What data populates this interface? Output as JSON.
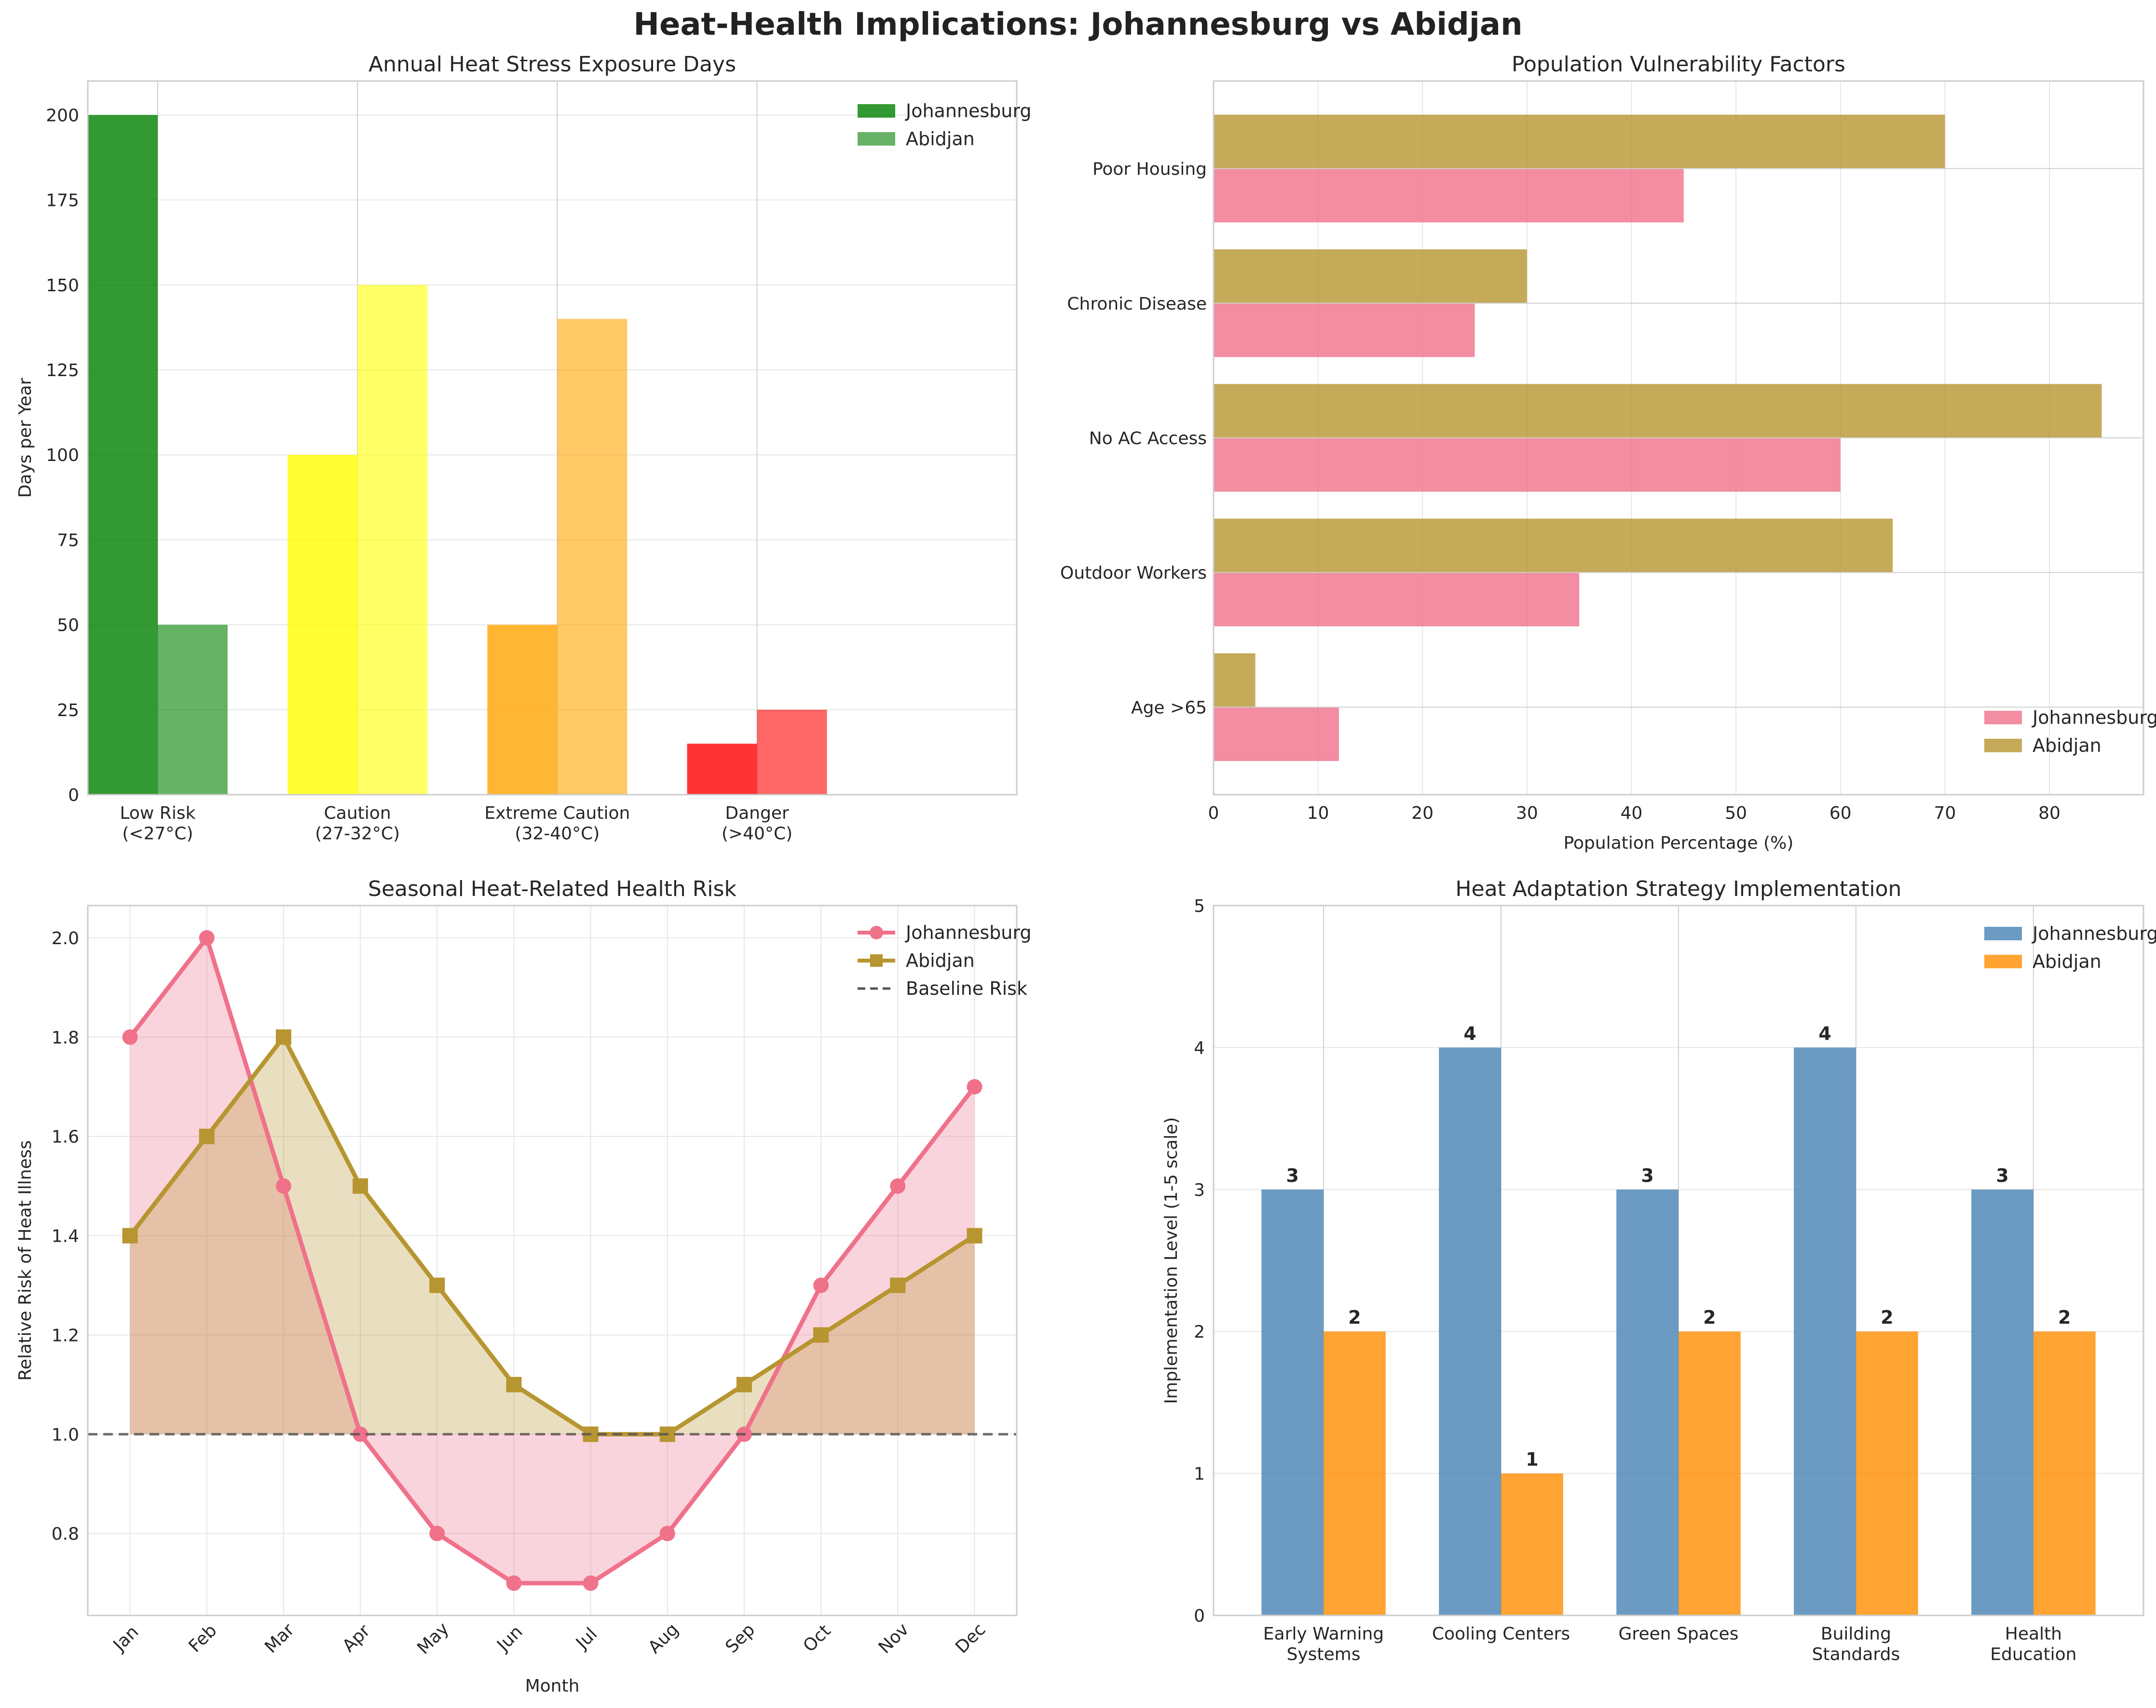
{
  "title": "Heat-Health Implications: Johannesburg vs Abidjan",
  "colors": {
    "johannesburg_line": "#f0718a",
    "abidjan_line": "#b79530",
    "johannesburg_bar_blue": "#4682b4",
    "abidjan_bar_orange": "#ff8c00",
    "risk_low": "#008000",
    "risk_caution": "#ffff00",
    "risk_extreme": "#ffa500",
    "risk_danger": "#ff0000"
  },
  "chart_data": [
    {
      "type": "bar",
      "title": "Annual Heat Stress Exposure Days",
      "xlabel": "",
      "ylabel": "Days per Year",
      "categories": [
        "Low Risk\n(<27°C)",
        "Caution\n(27-32°C)",
        "Extreme Caution\n(32-40°C)",
        "Danger\n(>40°C)"
      ],
      "series": [
        {
          "name": "Johannesburg",
          "values": [
            200,
            100,
            50,
            15
          ]
        },
        {
          "name": "Abidjan",
          "values": [
            50,
            150,
            140,
            25
          ]
        }
      ],
      "ylim": [
        0,
        210
      ],
      "yticks": [
        0,
        25,
        50,
        75,
        100,
        125,
        150,
        175,
        200
      ],
      "legend": "top-right",
      "grid": true
    },
    {
      "type": "bar",
      "orientation": "horizontal",
      "title": "Population Vulnerability Factors",
      "xlabel": "Population Percentage (%)",
      "ylabel": "",
      "categories": [
        "Age >65",
        "Outdoor Workers",
        "No AC Access",
        "Chronic Disease",
        "Poor Housing"
      ],
      "series": [
        {
          "name": "Johannesburg",
          "values": [
            12,
            35,
            60,
            25,
            45
          ]
        },
        {
          "name": "Abidjan",
          "values": [
            4,
            65,
            85,
            30,
            70
          ]
        }
      ],
      "xlim": [
        0,
        89
      ],
      "xticks": [
        0,
        10,
        20,
        30,
        40,
        50,
        60,
        70,
        80
      ],
      "legend": "bottom-right",
      "grid": true
    },
    {
      "type": "line",
      "title": "Seasonal Heat-Related Health Risk",
      "xlabel": "Month",
      "ylabel": "Relative Risk of Heat Illness",
      "categories": [
        "Jan",
        "Feb",
        "Mar",
        "Apr",
        "May",
        "Jun",
        "Jul",
        "Aug",
        "Sep",
        "Oct",
        "Nov",
        "Dec"
      ],
      "series": [
        {
          "name": "Johannesburg",
          "values": [
            1.8,
            2.0,
            1.5,
            1.0,
            0.8,
            0.7,
            0.7,
            0.8,
            1.0,
            1.3,
            1.5,
            1.7
          ]
        },
        {
          "name": "Abidjan",
          "values": [
            1.4,
            1.6,
            1.8,
            1.5,
            1.3,
            1.1,
            1.0,
            1.0,
            1.1,
            1.2,
            1.3,
            1.4
          ]
        }
      ],
      "baseline": {
        "name": "Baseline Risk",
        "value": 1.0
      },
      "ylim": [
        0.635,
        2.065
      ],
      "yticks": [
        0.8,
        1.0,
        1.2,
        1.4,
        1.6,
        1.8,
        2.0
      ],
      "legend": "top-right",
      "grid": true
    },
    {
      "type": "bar",
      "title": "Heat Adaptation Strategy Implementation",
      "xlabel": "",
      "ylabel": "Implementation Level (1-5 scale)",
      "categories": [
        "Early Warning\nSystems",
        "Cooling Centers",
        "Green Spaces",
        "Building\nStandards",
        "Health\nEducation"
      ],
      "series": [
        {
          "name": "Johannesburg",
          "values": [
            3,
            4,
            3,
            4,
            3
          ]
        },
        {
          "name": "Abidjan",
          "values": [
            2,
            1,
            2,
            2,
            2
          ]
        }
      ],
      "ylim": [
        0,
        5
      ],
      "yticks": [
        0,
        1,
        2,
        3,
        4,
        5
      ],
      "legend": "top-right",
      "grid": true
    }
  ]
}
